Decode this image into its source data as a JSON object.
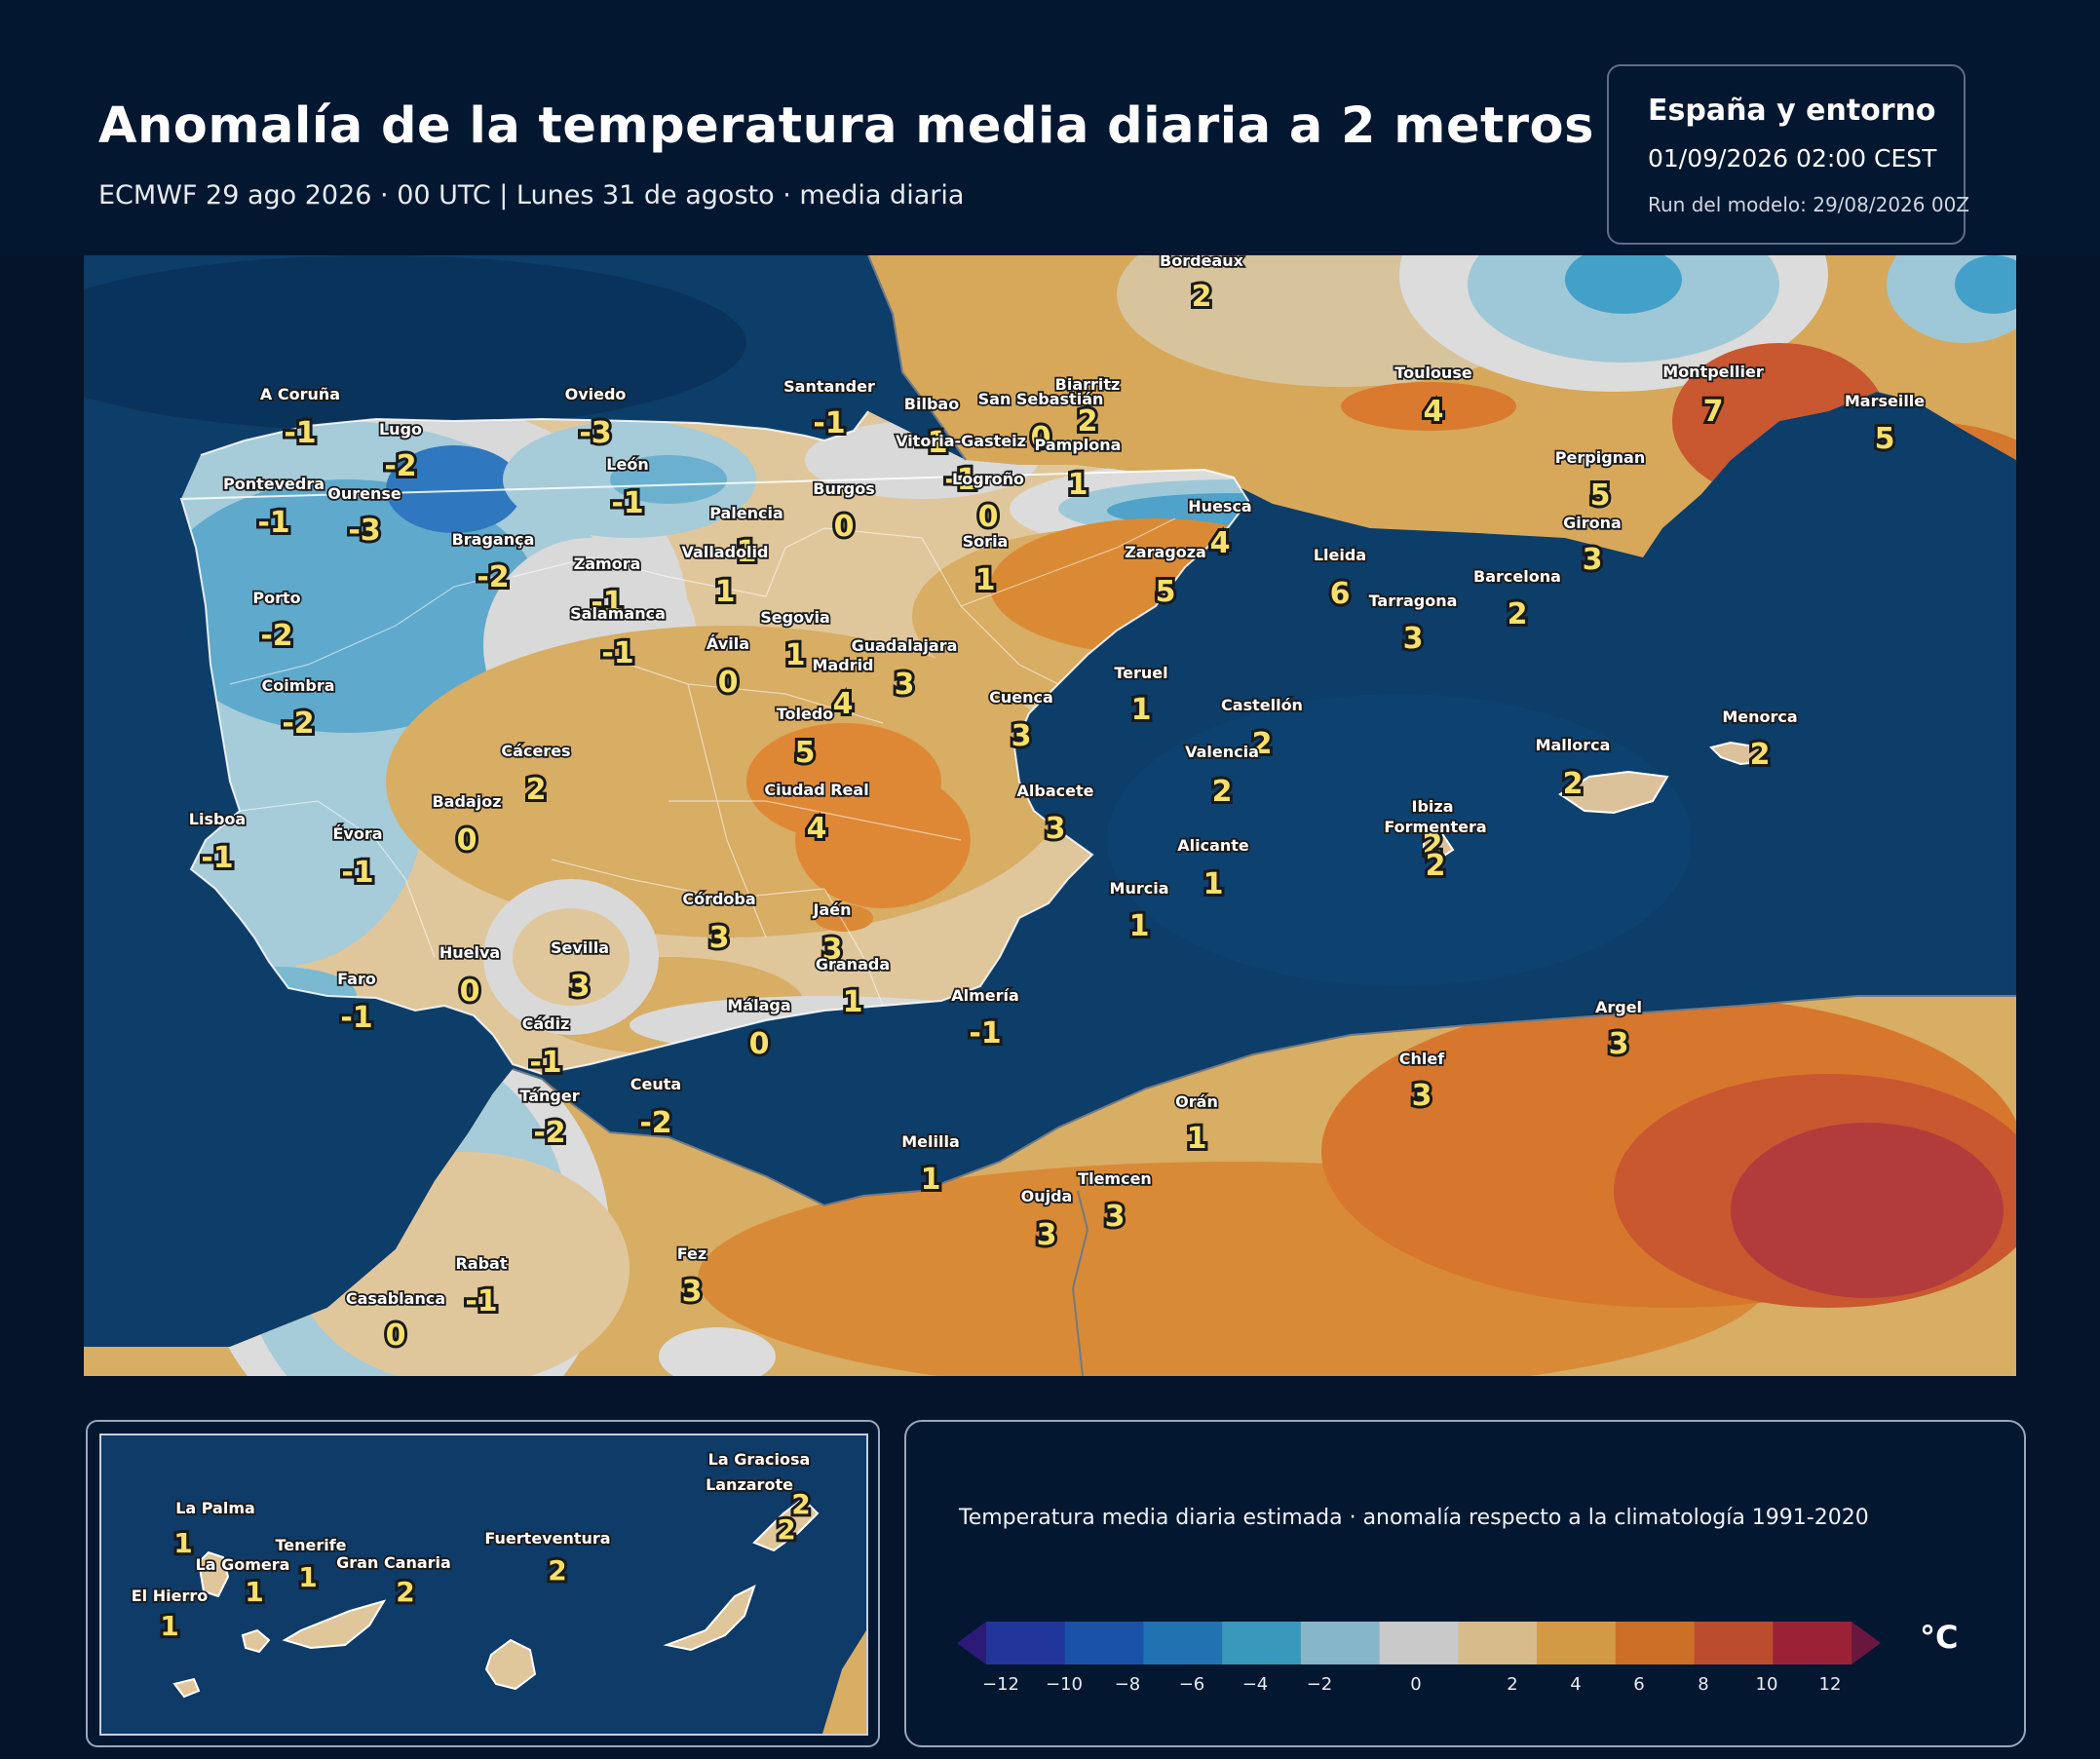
{
  "header": {
    "title": "Anomalía de la temperatura media diaria a 2 metros",
    "subtitle": "ECMWF 29 ago 2026 · 00 UTC  |  Lunes 31 de agosto · media diaria",
    "region": "España y entorno",
    "valid_time": "01/09/2026  02:00 CEST",
    "model_run": "Run del modelo: 29/08/2026 00Z"
  },
  "legend": {
    "caption": "Temperatura media diaria estimada · anomalía respecto a la climatología 1991-2020",
    "unit": "°C",
    "ticks": [
      "−12",
      "−10",
      "−8",
      "−6",
      "−4",
      "−2",
      "0",
      "2",
      "4",
      "6",
      "8",
      "10",
      "12"
    ],
    "colors": [
      "#2c1a78",
      "#22359a",
      "#1a52a8",
      "#2172b0",
      "#3a98bd",
      "#86b7c9",
      "#c9c9c9",
      "#d8bb8b",
      "#d39a45",
      "#cc7028",
      "#bb4d2e",
      "#9b2236",
      "#6a1740"
    ]
  },
  "cities": [
    {
      "name": "Bordeaux",
      "value": "2"
    },
    {
      "name": "Biarritz",
      "value": "2"
    },
    {
      "name": "Toulouse",
      "value": "4"
    },
    {
      "name": "Montpellier",
      "value": "7"
    },
    {
      "name": "Marseille",
      "value": "5"
    },
    {
      "name": "Perpignan",
      "value": "5"
    },
    {
      "name": "A Coruña",
      "value": "-1"
    },
    {
      "name": "Lugo",
      "value": "-2"
    },
    {
      "name": "Oviedo",
      "value": "-3"
    },
    {
      "name": "Santander",
      "value": "-1"
    },
    {
      "name": "Bilbao",
      "value": "-1"
    },
    {
      "name": "San Sebastián",
      "value": "0"
    },
    {
      "name": "Vitoria-Gasteiz",
      "value": "-1"
    },
    {
      "name": "Pamplona",
      "value": "1"
    },
    {
      "name": "Pontevedra",
      "value": "-1"
    },
    {
      "name": "Ourense",
      "value": "-3"
    },
    {
      "name": "León",
      "value": "-1"
    },
    {
      "name": "Burgos",
      "value": "0"
    },
    {
      "name": "Logroño",
      "value": "0"
    },
    {
      "name": "Palencia",
      "value": "1"
    },
    {
      "name": "Huesca",
      "value": "4"
    },
    {
      "name": "Girona",
      "value": "3"
    },
    {
      "name": "Bragança",
      "value": "-2"
    },
    {
      "name": "Zamora",
      "value": "-1"
    },
    {
      "name": "Valladolid",
      "value": "1"
    },
    {
      "name": "Soria",
      "value": "1"
    },
    {
      "name": "Zaragoza",
      "value": "5"
    },
    {
      "name": "Lleida",
      "value": "6"
    },
    {
      "name": "Barcelona",
      "value": "2"
    },
    {
      "name": "Porto",
      "value": "-2"
    },
    {
      "name": "Salamanca",
      "value": "-1"
    },
    {
      "name": "Segovia",
      "value": "1"
    },
    {
      "name": "Tarragona",
      "value": "3"
    },
    {
      "name": "Ávila",
      "value": "0"
    },
    {
      "name": "Guadalajara",
      "value": "3"
    },
    {
      "name": "Madrid",
      "value": "4"
    },
    {
      "name": "Teruel",
      "value": "1"
    },
    {
      "name": "Coimbra",
      "value": "-2"
    },
    {
      "name": "Toledo",
      "value": "5"
    },
    {
      "name": "Cuenca",
      "value": "3"
    },
    {
      "name": "Castellón",
      "value": "2"
    },
    {
      "name": "Menorca",
      "value": "2"
    },
    {
      "name": "Cáceres",
      "value": "2"
    },
    {
      "name": "Valencia",
      "value": "2"
    },
    {
      "name": "Mallorca",
      "value": "2"
    },
    {
      "name": "Badajoz",
      "value": "0"
    },
    {
      "name": "Ciudad Real",
      "value": "4"
    },
    {
      "name": "Albacete",
      "value": "3"
    },
    {
      "name": "Ibiza",
      "value": "2"
    },
    {
      "name": "Formentera",
      "value": "2"
    },
    {
      "name": "Lisboa",
      "value": "-1"
    },
    {
      "name": "Évora",
      "value": "-1"
    },
    {
      "name": "Alicante",
      "value": "1"
    },
    {
      "name": "Murcia",
      "value": "1"
    },
    {
      "name": "Córdoba",
      "value": "3"
    },
    {
      "name": "Jaén",
      "value": "3"
    },
    {
      "name": "Huelva",
      "value": "0"
    },
    {
      "name": "Sevilla",
      "value": "3"
    },
    {
      "name": "Granada",
      "value": "1"
    },
    {
      "name": "Faro",
      "value": "-1"
    },
    {
      "name": "Almería",
      "value": "-1"
    },
    {
      "name": "Argel",
      "value": "3"
    },
    {
      "name": "Málaga",
      "value": "0"
    },
    {
      "name": "Cádiz",
      "value": "-1"
    },
    {
      "name": "Chlef",
      "value": "3"
    },
    {
      "name": "Ceuta",
      "value": "-2"
    },
    {
      "name": "Tánger",
      "value": "-2"
    },
    {
      "name": "Orán",
      "value": "1"
    },
    {
      "name": "Melilla",
      "value": "1"
    },
    {
      "name": "Tlemcen",
      "value": "3"
    },
    {
      "name": "Oujda",
      "value": "3"
    },
    {
      "name": "Rabat",
      "value": "-1"
    },
    {
      "name": "Fez",
      "value": "3"
    },
    {
      "name": "Casablanca",
      "value": "0"
    }
  ],
  "canarias": [
    {
      "name": "La Graciosa",
      "value": "2"
    },
    {
      "name": "Lanzarote",
      "value": "2"
    },
    {
      "name": "La Palma",
      "value": "1"
    },
    {
      "name": "Tenerife",
      "value": "1"
    },
    {
      "name": "La Gomera",
      "value": "1"
    },
    {
      "name": "Gran Canaria",
      "value": "2"
    },
    {
      "name": "Fuerteventura",
      "value": "2"
    },
    {
      "name": "El Hierro",
      "value": "1"
    }
  ]
}
